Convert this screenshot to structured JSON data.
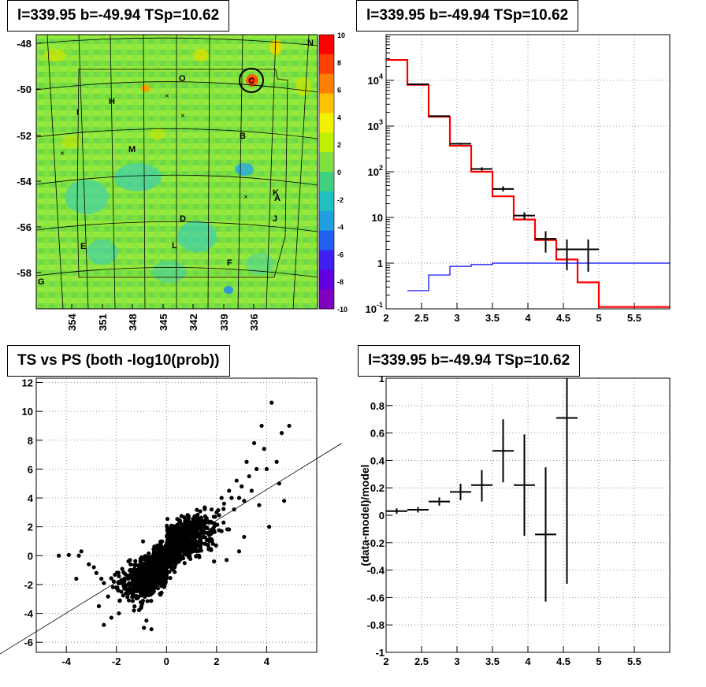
{
  "panels": {
    "skymap": {
      "title": "l=339.95 b=-49.94 TSp=10.62"
    },
    "spectrum": {
      "title": "l=339.95 b=-49.94 TSp=10.62"
    },
    "scatter": {
      "title": "TS vs PS (both -log10(prob))"
    },
    "residual": {
      "title": "l=339.95 b=-49.94 TSp=10.62"
    }
  },
  "colors": {
    "data": "#000000",
    "model": "#ff0000",
    "background_model": "#0000ff",
    "grid": "#888888"
  },
  "chart_data": [
    {
      "type": "heatmap",
      "title": "l=339.95 b=-49.94 TSp=10.62",
      "x_tick_labels": [
        "354",
        "351",
        "348",
        "345",
        "342",
        "339",
        "336"
      ],
      "y_tick_labels": [
        "-48",
        "-50",
        "-52",
        "-54",
        "-56",
        "-58"
      ],
      "colorbar_ticks": [
        "10",
        "8",
        "6",
        "4",
        "2",
        "0",
        "-2",
        "-4",
        "-6",
        "-8",
        "-10"
      ],
      "zlim": [
        -10,
        10
      ],
      "region_labels": [
        "N",
        "O",
        "C",
        "H",
        "I",
        "B",
        "M",
        "K",
        "A",
        "D",
        "J",
        "E",
        "L",
        "F",
        "G"
      ],
      "note_marker": "circle around source C"
    },
    {
      "type": "line",
      "title": "l=339.95 b=-49.94 TSp=10.62",
      "xlim": [
        2,
        6
      ],
      "ylim": [
        0.1,
        100000
      ],
      "yscale": "log",
      "x_tick_labels": [
        "2",
        "2.5",
        "3",
        "3.5",
        "4",
        "4.5",
        "5",
        "5.5"
      ],
      "y_tick_labels": [
        "10^-1",
        "1",
        "10",
        "10^2",
        "10^3",
        "10^4"
      ],
      "series": [
        {
          "style": "step",
          "color": "#ff0000",
          "edges": [
            2.0,
            2.3,
            2.6,
            2.9,
            3.2,
            3.5,
            3.8,
            4.1,
            4.4,
            4.7,
            5.0,
            6.0
          ],
          "values": [
            28000,
            8000,
            1600,
            370,
            100,
            29,
            9,
            3.2,
            1.2,
            0.38,
            0.11
          ]
        },
        {
          "style": "step",
          "color": "#0000ff",
          "edges": [
            2.3,
            2.6,
            2.9,
            3.2,
            3.5,
            6.0
          ],
          "values": [
            0.25,
            0.55,
            0.85,
            0.93,
            1.0
          ]
        },
        {
          "style": "points",
          "color": "#000000",
          "x": [
            2.45,
            2.75,
            3.05,
            3.35,
            3.65,
            3.95,
            4.25,
            4.55,
            4.85
          ],
          "xerr": 0.15,
          "y": [
            8200,
            1650,
            410,
            115,
            42,
            11,
            3.4,
            2.0,
            2.0
          ],
          "ylo": [
            8000,
            1600,
            390,
            105,
            37,
            9,
            1.7,
            0.7,
            0.65
          ],
          "yhi": [
            8400,
            1700,
            430,
            125,
            48,
            13,
            5.0,
            3.3,
            3.3
          ]
        }
      ]
    },
    {
      "type": "scatter",
      "title": "TS vs PS (both -log10(prob))",
      "xlim": [
        -5.2,
        6.0
      ],
      "ylim": [
        -6.7,
        12.3
      ],
      "x_tick_labels": [
        "-4",
        "-2",
        "0",
        "2",
        "4"
      ],
      "y_tick_labels": [
        "-6",
        "-4",
        "-2",
        "0",
        "2",
        "4",
        "6",
        "8",
        "10",
        "12"
      ],
      "fit_line": {
        "slope": 1.07,
        "intercept": 0.3
      },
      "series": [
        {
          "name": "",
          "color": "#000000",
          "x": [
            4.2,
            3.8,
            4.6,
            4.9,
            3.5,
            3.9,
            4.4,
            3.6,
            4.0,
            3.3,
            3.2,
            4.5,
            3.0,
            2.8,
            3.4,
            2.9,
            3.1,
            2.5,
            2.6,
            2.7,
            2.3,
            2.2,
            2.0,
            1.8,
            2.1,
            1.6,
            1.5,
            4.7,
            4.1,
            3.7,
            -4.3,
            -3.9,
            -3.5,
            -3.4,
            -3.1,
            -2.8,
            -2.6,
            -2.5,
            -2.0,
            -1.8,
            -3.6,
            -2.9,
            -2.7,
            -1.5,
            -1.2,
            -1.0,
            -0.8,
            -0.6,
            -2.5,
            -2.2,
            -1.9,
            -1.3,
            -0.9,
            2.9,
            2.4,
            1.9,
            1.3,
            3.1,
            2.2,
            1.7
          ],
          "y": [
            10.6,
            9.0,
            8.5,
            9.0,
            7.8,
            7.4,
            6.5,
            6.0,
            6.0,
            5.5,
            6.5,
            5.0,
            4.8,
            5.2,
            4.5,
            4.0,
            3.8,
            4.5,
            4.0,
            3.2,
            3.6,
            4.0,
            3.0,
            3.2,
            2.8,
            2.6,
            2.3,
            3.8,
            2.0,
            3.5,
            0.0,
            0.05,
            0.0,
            0.3,
            -0.6,
            -1.2,
            -1.6,
            -1.9,
            -2.2,
            -2.5,
            -1.6,
            -0.8,
            -3.5,
            -3.1,
            -2.8,
            -3.5,
            -4.5,
            -5.1,
            -4.8,
            -4.3,
            -4.0,
            -3.8,
            -5.0,
            0.3,
            -0.3,
            -0.4,
            0.0,
            1.3,
            1.7,
            1.1
          ],
          "dense_cloud": {
            "x_range": [
              -2.5,
              3.0
            ],
            "y_range": [
              -4.5,
              3.5
            ],
            "note": "many overlapping points, correlated"
          }
        }
      ]
    },
    {
      "type": "line",
      "title": "l=339.95 b=-49.94 TSp=10.62",
      "ylabel": "(data-model)/model",
      "xlim": [
        2,
        6
      ],
      "ylim": [
        -1,
        1
      ],
      "x_tick_labels": [
        "2",
        "2.5",
        "3",
        "3.5",
        "4",
        "4.5",
        "5",
        "5.5"
      ],
      "y_tick_labels": [
        "-1",
        "-0.8",
        "-0.6",
        "-0.4",
        "-0.2",
        "0",
        "0.2",
        "0.4",
        "0.6",
        "0.8",
        "1"
      ],
      "series": [
        {
          "style": "points",
          "color": "#000000",
          "x": [
            2.15,
            2.45,
            2.75,
            3.05,
            3.35,
            3.65,
            3.95,
            4.25,
            4.55
          ],
          "xerr": 0.15,
          "y": [
            0.03,
            0.04,
            0.1,
            0.17,
            0.22,
            0.47,
            0.22,
            -0.14,
            0.71
          ],
          "ylo": [
            0.01,
            0.02,
            0.07,
            0.11,
            0.1,
            0.24,
            -0.15,
            -0.63,
            -0.5
          ],
          "yhi": [
            0.05,
            0.06,
            0.13,
            0.23,
            0.33,
            0.7,
            0.59,
            0.35,
            1.0
          ]
        }
      ]
    }
  ]
}
